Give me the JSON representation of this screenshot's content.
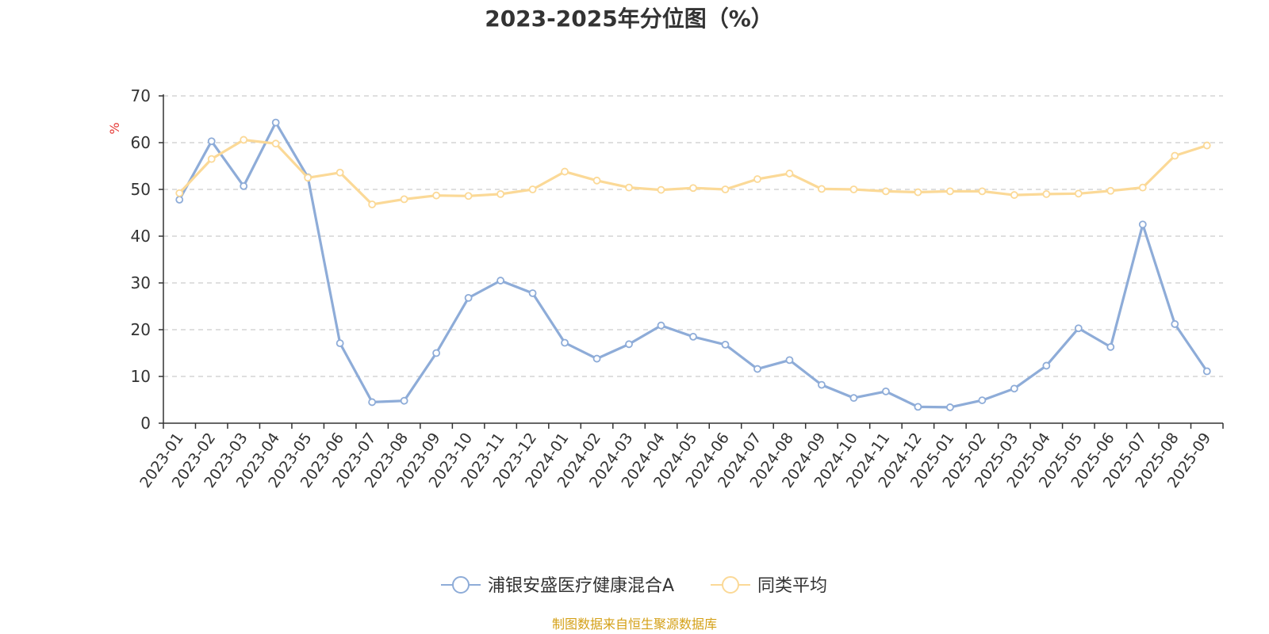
{
  "chart_data": {
    "type": "line",
    "title": "2023-2025年分位图（%）",
    "ylabel": "%",
    "xlabel": "",
    "ylim": [
      0,
      70
    ],
    "yticks": [
      0,
      10,
      20,
      30,
      40,
      50,
      60,
      70
    ],
    "grid": true,
    "legend_position": "bottom-center",
    "categories": [
      "2023-01",
      "2023-02",
      "2023-03",
      "2023-04",
      "2023-05",
      "2023-06",
      "2023-07",
      "2023-08",
      "2023-09",
      "2023-10",
      "2023-11",
      "2023-12",
      "2024-01",
      "2024-02",
      "2024-03",
      "2024-04",
      "2024-05",
      "2024-06",
      "2024-07",
      "2024-08",
      "2024-09",
      "2024-10",
      "2024-11",
      "2024-12",
      "2025-01",
      "2025-02",
      "2025-03",
      "2025-04",
      "2025-05",
      "2025-06",
      "2025-07",
      "2025-08",
      "2025-09"
    ],
    "series": [
      {
        "name": "浦银安盛医疗健康混合A",
        "color": "#8eacd8",
        "values": [
          47.8,
          60.3,
          50.7,
          64.3,
          52.6,
          17.1,
          4.5,
          4.8,
          15.0,
          26.8,
          30.5,
          27.8,
          17.2,
          13.8,
          16.9,
          20.9,
          18.5,
          16.8,
          11.6,
          13.5,
          8.2,
          5.4,
          6.8,
          3.5,
          3.4,
          4.9,
          7.4,
          12.3,
          20.3,
          16.3,
          42.5,
          21.2,
          11.1
        ]
      },
      {
        "name": "同类平均",
        "color": "#fbd997",
        "values": [
          49.2,
          56.5,
          60.6,
          59.8,
          52.5,
          53.6,
          46.8,
          47.9,
          48.7,
          48.6,
          49.0,
          50.0,
          53.8,
          51.9,
          50.4,
          49.9,
          50.3,
          50.0,
          52.2,
          53.4,
          50.1,
          50.0,
          49.6,
          49.4,
          49.6,
          49.6,
          48.8,
          49.0,
          49.1,
          49.7,
          50.4,
          57.2,
          59.4
        ]
      }
    ],
    "source": "制图数据来自恒生聚源数据库"
  }
}
